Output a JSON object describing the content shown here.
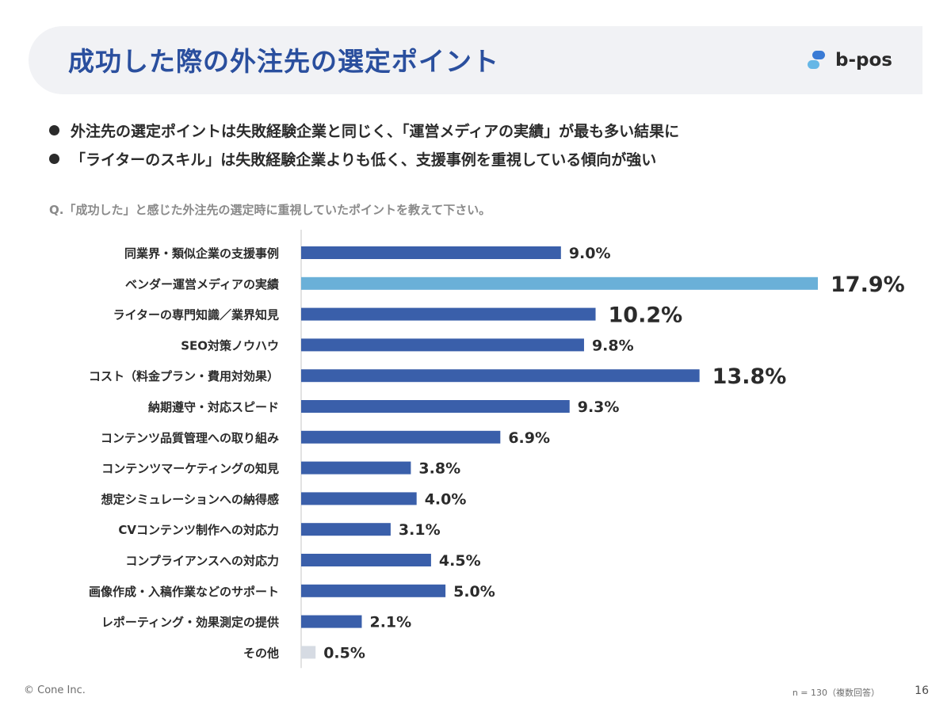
{
  "header": {
    "title": "成功した際の外注先の選定ポイント",
    "logo_text": "b-pos"
  },
  "bullets": [
    "外注先の選定ポイントは失敗経験企業と同じく、「運営メディアの実績」が最も多い結果に",
    "「ライターのスキル」は失敗経験企業よりも低く、支援事例を重視している傾向が強い"
  ],
  "question": "Q.「成功した」と感じた外注先の選定時に重視していたポイントを教えて下さい。",
  "chart_data": {
    "type": "bar",
    "orientation": "horizontal",
    "title": "",
    "xlabel": "",
    "ylabel": "",
    "xlim": [
      0,
      17.9
    ],
    "unit": "%",
    "categories": [
      "同業界・類似企業の支援事例",
      "ベンダー運営メディアの実績",
      "ライターの専門知識／業界知見",
      "SEO対策ノウハウ",
      "コスト（料金プラン・費用対効果）",
      "納期遵守・対応スピード",
      "コンテンツ品質管理への取り組み",
      "コンテンツマーケティングの知見",
      "想定シミュレーションへの納得感",
      "CVコンテンツ制作への対応力",
      "コンプライアンスへの対応力",
      "画像作成・入稿作業などのサポート",
      "レポーティング・効果測定の提供",
      "その他"
    ],
    "values": [
      9.0,
      17.9,
      10.2,
      9.8,
      13.8,
      9.3,
      6.9,
      3.8,
      4.0,
      3.1,
      4.5,
      5.0,
      2.1,
      0.5
    ],
    "labels": [
      "9.0%",
      "17.9%",
      "10.2%",
      "9.8%",
      "13.8%",
      "9.3%",
      "6.9%",
      "3.8%",
      "4.0%",
      "3.1%",
      "4.5%",
      "5.0%",
      "2.1%",
      "0.5%"
    ],
    "highlight": [
      false,
      true,
      true,
      false,
      true,
      false,
      false,
      false,
      false,
      false,
      false,
      false,
      false,
      false
    ],
    "bar_colors": [
      "#3a5faa",
      "#6ab0d8",
      "#3a5faa",
      "#3a5faa",
      "#3a5faa",
      "#3a5faa",
      "#3a5faa",
      "#3a5faa",
      "#3a5faa",
      "#3a5faa",
      "#3a5faa",
      "#3a5faa",
      "#3a5faa",
      "#d6dbe3"
    ]
  },
  "footer": {
    "copyright": "© Cone Inc.",
    "note": "n = 130（複数回答）",
    "page": "16"
  }
}
